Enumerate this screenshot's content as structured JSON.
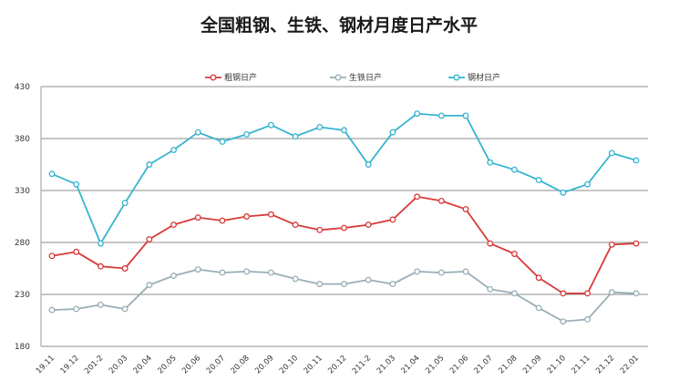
{
  "chart_data": {
    "type": "line",
    "title": "全国粗钢、生铁、钢材月度日产水平",
    "categories": [
      "19.11",
      "19.12",
      "201-2",
      "20.03",
      "20.04",
      "20.05",
      "20.06",
      "20.07",
      "20.08",
      "20.09",
      "20.10",
      "20.11",
      "20.12",
      "211-2",
      "21.03",
      "21.04",
      "21.05",
      "21.06",
      "21.07",
      "21.08",
      "21.09",
      "21.10",
      "21.11",
      "21.12",
      "22.01"
    ],
    "ylim": [
      180,
      430
    ],
    "yticks": [
      180,
      230,
      280,
      330,
      380,
      430
    ],
    "grid": true,
    "legend_position": "top",
    "series": [
      {
        "name": "粗钢日产",
        "color": "#d83a3a",
        "values": [
          267,
          271,
          257,
          255,
          283,
          297,
          304,
          301,
          305,
          307,
          297,
          292,
          294,
          297,
          302,
          324,
          320,
          312,
          279,
          269,
          246,
          231,
          231,
          278,
          279
        ]
      },
      {
        "name": "生铁日产",
        "color": "#98aeb6",
        "values": [
          215,
          216,
          220,
          216,
          239,
          248,
          254,
          251,
          252,
          251,
          245,
          240,
          240,
          244,
          240,
          252,
          251,
          252,
          235,
          231,
          217,
          204,
          206,
          232,
          231
        ]
      },
      {
        "name": "钢材日产",
        "color": "#36b4d0",
        "values": [
          346,
          336,
          279,
          318,
          355,
          369,
          386,
          377,
          384,
          393,
          382,
          391,
          388,
          355,
          386,
          404,
          402,
          402,
          357,
          350,
          340,
          328,
          336,
          366,
          359
        ]
      }
    ]
  }
}
